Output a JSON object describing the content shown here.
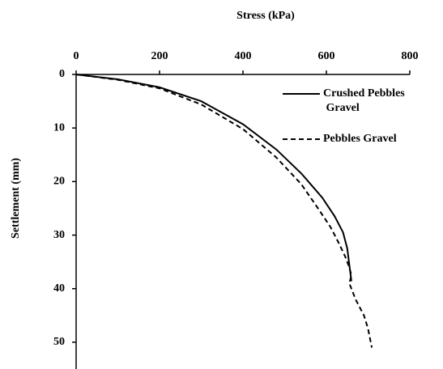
{
  "chart_data": {
    "type": "line",
    "x_label": "Stress (kPa)",
    "y_label": "Settlement (mm)",
    "x_axis_position": "top",
    "y_inverted": true,
    "xlim": [
      0,
      800
    ],
    "xticks": [
      0,
      200,
      400,
      600,
      800
    ],
    "ylim": [
      0,
      55
    ],
    "yticks": [
      0,
      10,
      20,
      30,
      40,
      50
    ],
    "legend": "top-right",
    "series": [
      {
        "name": "Crushed Pebbles Gravel",
        "color": "#000000",
        "linestyle": "solid",
        "x": [
          0,
          100,
          200,
          300,
          400,
          480,
          540,
          590,
          620,
          640,
          650,
          655,
          660
        ],
        "values": [
          0,
          0.9,
          2.4,
          5,
          9.3,
          14,
          18.5,
          23,
          26.5,
          29.5,
          32.5,
          35.5,
          38.6
        ]
      },
      {
        "name": "Pebbles Gravel",
        "color": "#000000",
        "linestyle": "dashed",
        "x": [
          0,
          100,
          200,
          300,
          400,
          480,
          540,
          580,
          610,
          630,
          645,
          655,
          660,
          655,
          670,
          690,
          700,
          705,
          709
        ],
        "values": [
          0,
          1,
          2.6,
          5.6,
          10.2,
          15.5,
          20.5,
          25,
          28.5,
          31.5,
          34,
          36,
          37.5,
          39,
          42,
          45,
          47.5,
          49.5,
          51
        ]
      }
    ]
  }
}
